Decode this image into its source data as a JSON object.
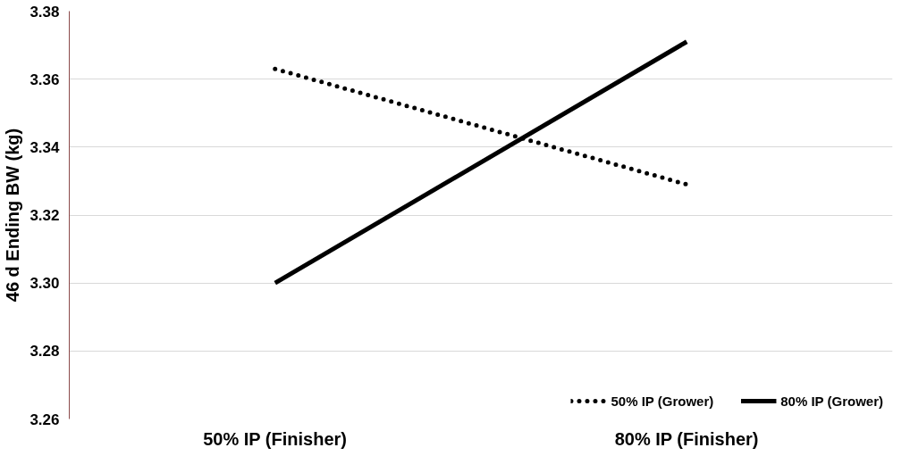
{
  "chart_data": {
    "type": "line",
    "ylabel": "46 d Ending BW (kg)",
    "categories": [
      "50% IP (Finisher)",
      "80% IP (Finisher)"
    ],
    "series": [
      {
        "name": "50% IP (Grower)",
        "color": "#000000",
        "line_style": "dotted",
        "values": [
          3.363,
          3.329
        ]
      },
      {
        "name": "80% IP (Grower)",
        "color": "#000000",
        "line_style": "solid",
        "values": [
          3.3,
          3.371
        ]
      }
    ],
    "ylim": [
      3.26,
      3.38
    ],
    "yticks": [
      {
        "value": 3.26,
        "label": "3.26"
      },
      {
        "value": 3.28,
        "label": "3.28"
      },
      {
        "value": 3.3,
        "label": "3.30"
      },
      {
        "value": 3.32,
        "label": "3.32"
      },
      {
        "value": 3.34,
        "label": "3.34"
      },
      {
        "value": 3.36,
        "label": "3.36"
      },
      {
        "value": 3.38,
        "label": "3.38"
      }
    ],
    "grid": "y",
    "legend": "bottom right",
    "marker": "none"
  }
}
